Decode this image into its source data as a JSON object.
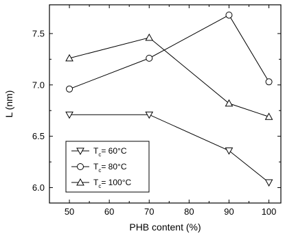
{
  "chart_data": {
    "type": "line",
    "title": "",
    "xlabel": "PHB content (%)",
    "ylabel": "L (nm)",
    "xlim": [
      45,
      103
    ],
    "ylim": [
      5.85,
      7.78
    ],
    "x_ticks": [
      50,
      60,
      70,
      80,
      90,
      100
    ],
    "y_ticks": [
      6.0,
      6.5,
      7.0,
      7.5
    ],
    "x_tick_labels": [
      "50",
      "60",
      "70",
      "80",
      "90",
      "100"
    ],
    "y_tick_labels": [
      "6.0",
      "6.5",
      "7.0",
      "7.5"
    ],
    "grid": false,
    "legend_position": "bottom-left",
    "series": [
      {
        "name_main": "T",
        "name_sub": "c",
        "name_rest": "= 60°C",
        "marker": "triangle-down",
        "x": [
          50,
          70,
          90,
          100
        ],
        "y": [
          6.71,
          6.71,
          6.36,
          6.05
        ]
      },
      {
        "name_main": "T",
        "name_sub": "c",
        "name_rest": "= 80°C",
        "marker": "circle",
        "x": [
          50,
          70,
          90,
          100
        ],
        "y": [
          6.96,
          7.26,
          7.68,
          7.03
        ]
      },
      {
        "name_main": "T",
        "name_sub": "c",
        "name_rest": "= 100°C",
        "marker": "triangle-up",
        "x": [
          50,
          70,
          90,
          100
        ],
        "y": [
          7.26,
          7.46,
          6.82,
          6.69
        ]
      }
    ]
  }
}
